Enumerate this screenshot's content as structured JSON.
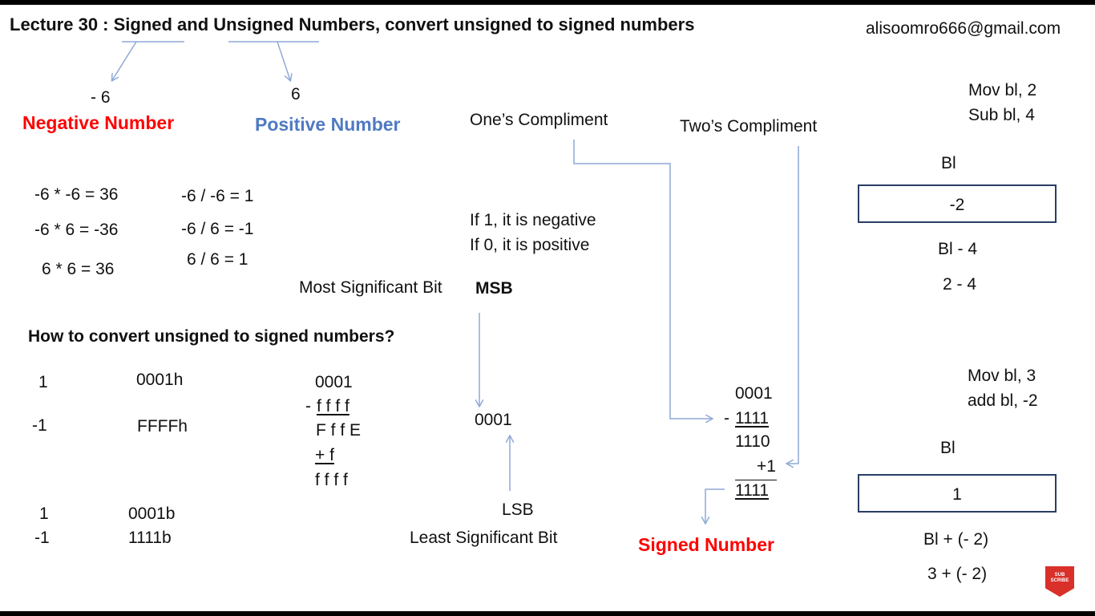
{
  "title": "Lecture 30 : Signed and Unsigned Numbers, convert unsigned to signed numbers",
  "email": "alisoomro666@gmail.com",
  "negative": {
    "value": "- 6",
    "label": "Negative Number"
  },
  "positive": {
    "value": "6",
    "label": "Positive Number"
  },
  "ones_compliment": "One’s Compliment",
  "twos_compliment": "Two’s Compliment",
  "multiplications": [
    "-6 * -6 = 36",
    "-6 * 6 = -36",
    "6 * 6 =  36"
  ],
  "divisions": [
    "-6 / -6 = 1",
    "-6 / 6 = -1",
    "6 / 6 =  1"
  ],
  "msb_rules": [
    "If  1, it is negative",
    "If  0, it is positive"
  ],
  "msb_text": "Most Significant Bit",
  "msb_abbr": "MSB",
  "lsb_abbr": "LSB",
  "lsb_text": "Least Significant Bit",
  "bit_example": "0001",
  "question": "How to convert unsigned to signed numbers?",
  "hex_table": [
    {
      "dec": "1",
      "repr": "0001h"
    },
    {
      "dec": "-1",
      "repr": "FFFFh"
    }
  ],
  "bin_table": [
    {
      "dec": "1",
      "repr": "0001b"
    },
    {
      "dec": "-1",
      "repr": "1111b"
    }
  ],
  "hex_calc": {
    "a": "0001",
    "minus": "-",
    "b": "f f f f",
    "r1": "F f f E",
    "plus": "+ f",
    "r2": "f f f f"
  },
  "bin_calc": {
    "a": "0001",
    "minus": "-",
    "b": "1111",
    "r1": "1110",
    "plus": "+1",
    "r2": "1111"
  },
  "signed_label": "Signed Number",
  "asm1": {
    "line1": "Mov bl, 2",
    "line2": "Sub bl, 4",
    "reg": "Bl",
    "box": "-2",
    "expr1": "Bl - 4",
    "expr2": "2 - 4"
  },
  "asm2": {
    "line1": "Mov bl, 3",
    "line2": "add bl, -2",
    "reg": "Bl",
    "box": "1",
    "expr1": "Bl + (- 2)",
    "expr2": "3 + (- 2)"
  },
  "badge": {
    "line1": "SUB",
    "line2": "SCRIBE"
  },
  "colors": {
    "negative": "#ff0000",
    "positive": "#4f7ac2",
    "arrow": "#8fa9d6",
    "box_border": "#2a3d64",
    "badge": "#d9302a"
  }
}
